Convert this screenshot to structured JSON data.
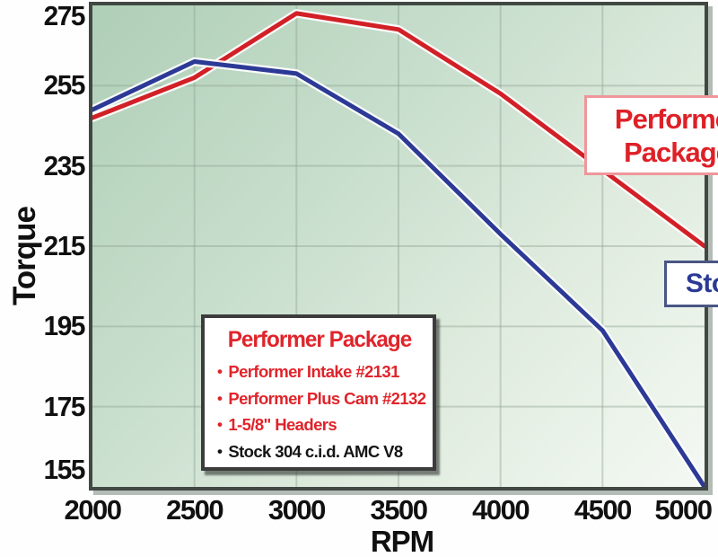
{
  "chart_data": {
    "type": "line",
    "title": "",
    "xlabel": "RPM",
    "ylabel": "Torque",
    "xlim": [
      2000,
      5000
    ],
    "ylim": [
      155,
      275
    ],
    "grid": true,
    "x": [
      2000,
      2500,
      3000,
      3500,
      4000,
      4500,
      5000
    ],
    "x_tick_labels": [
      "2000",
      "2500",
      "3000",
      "3500",
      "4000",
      "4500",
      "5000"
    ],
    "y_ticks": [
      275,
      255,
      235,
      215,
      195,
      175,
      155
    ],
    "y_tick_labels": [
      "275",
      "255",
      "235",
      "215",
      "195",
      "175",
      "155"
    ],
    "series": [
      {
        "name": "Performer Package",
        "color": "#d22027",
        "values": [
          247,
          257,
          273,
          269,
          253,
          234,
          215
        ]
      },
      {
        "name": "Stock",
        "color": "#2c3a96",
        "values": [
          249,
          261,
          258,
          243,
          218,
          194,
          155
        ]
      }
    ]
  },
  "callouts": {
    "performer_line1": "Performer",
    "performer_line2": "Package",
    "stock": "Stock"
  },
  "legend": {
    "title": "Performer Package",
    "items": [
      {
        "bullet": "•",
        "text": "Performer Intake #2131",
        "color": "red"
      },
      {
        "bullet": "•",
        "text": "Performer Plus Cam #2132",
        "color": "red"
      },
      {
        "bullet": "•",
        "text": "1-5/8\" Headers",
        "color": "red"
      },
      {
        "bullet": "•",
        "text": "Stock 304 c.i.d. AMC V8",
        "color": "black"
      }
    ]
  },
  "colors": {
    "red_line": "#d22027",
    "blue_line": "#2c3a96",
    "line_halo": "#ffffff",
    "gridline": "#8fa392",
    "axis_text": "#101010"
  }
}
